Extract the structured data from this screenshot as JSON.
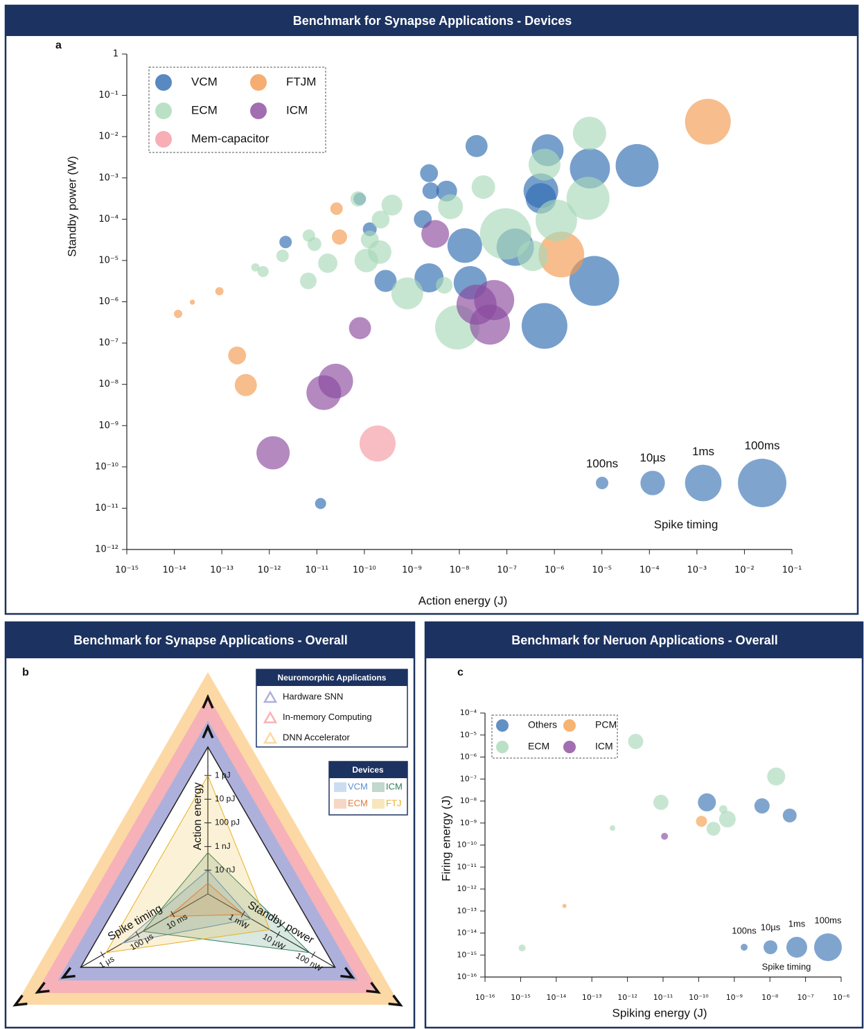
{
  "chart_data": [
    {
      "type": "bubble",
      "title": "Benchmark for Synapse Applications - Devices",
      "panel_label": "a",
      "x_label": "Action energy (J)",
      "y_label": "Standby power (W)",
      "log_x": true,
      "log_y": true,
      "xlim": [
        1e-15,
        0.1
      ],
      "ylim": [
        1e-12,
        1
      ],
      "xticks": [
        {
          "value": 1e-15,
          "label": "10⁻¹⁵"
        },
        {
          "value": 1e-14,
          "label": "10⁻¹⁴"
        },
        {
          "value": 1e-13,
          "label": "10⁻¹³"
        },
        {
          "value": 1e-12,
          "label": "10⁻¹²"
        },
        {
          "value": 1e-11,
          "label": "10⁻¹¹"
        },
        {
          "value": 1e-10,
          "label": "10⁻¹⁰"
        },
        {
          "value": 1e-09,
          "label": "10⁻⁹"
        },
        {
          "value": 1e-08,
          "label": "10⁻⁸"
        },
        {
          "value": 1e-07,
          "label": "10⁻⁷"
        },
        {
          "value": 1e-06,
          "label": "10⁻⁶"
        },
        {
          "value": 1e-05,
          "label": "10⁻⁵"
        },
        {
          "value": 0.0001,
          "label": "10⁻⁴"
        },
        {
          "value": 0.001,
          "label": "10⁻³"
        },
        {
          "value": 0.01,
          "label": "10⁻²"
        },
        {
          "value": 0.1,
          "label": "10⁻¹"
        }
      ],
      "yticks": [
        1,
        {
          "value": 0.1,
          "label": "10⁻¹"
        },
        {
          "value": 0.01,
          "label": "10⁻²"
        },
        {
          "value": 0.001,
          "label": "10⁻³"
        },
        {
          "value": 0.0001,
          "label": "10⁻⁴"
        },
        {
          "value": 1e-05,
          "label": "10⁻⁵"
        },
        {
          "value": 1e-06,
          "label": "10⁻⁶"
        },
        {
          "value": 1e-07,
          "label": "10⁻⁷"
        },
        {
          "value": 1e-08,
          "label": "10⁻⁸"
        },
        {
          "value": 1e-09,
          "label": "10⁻⁹"
        },
        {
          "value": 1e-10,
          "label": "10⁻¹⁰"
        },
        {
          "value": 1e-11,
          "label": "10⁻¹¹"
        },
        {
          "value": 1e-12,
          "label": "10⁻¹²"
        }
      ],
      "legend_position": "upper left",
      "series": [
        {
          "name": "VCM",
          "color": "#2e6bb0",
          "x": [
            2.3e-08,
            7.2e-07,
            5.6e-06,
            5.5e-05,
            2.3e-09,
            2.5e-09,
            5.4e-09,
            5.2e-07,
            5.2e-07,
            8e-11,
            1.7e-09,
            1.3e-10,
            2.2e-12,
            1.3e-08,
            1.5e-07,
            2.8e-10,
            2.3e-09,
            1.7e-08,
            6.9e-06,
            6.2e-07,
            1.2e-11
          ],
          "values": [
            0.0059,
            0.0047,
            0.0017,
            0.002,
            0.0013,
            0.00049,
            0.00048,
            0.00049,
            0.00032,
            0.00031,
            0.0001,
            5.7e-05,
            2.8e-05,
            2.3e-05,
            2.1e-05,
            3.2e-06,
            3.8e-06,
            2.9e-06,
            3.2e-06,
            2.6e-07,
            1.3e-11
          ],
          "sizes": [
            4e-06,
            0.00017,
            0.004,
            0.012,
            8e-07,
            5e-07,
            2.5e-06,
            0.0005,
            0.0001,
            1e-07,
            8e-07,
            1.7e-07,
            1e-07,
            0.0005,
            0.0014,
            4e-06,
            5.9e-05,
            0.00029,
            0.17,
            0.035,
            6e-08
          ]
        },
        {
          "name": "FTJM",
          "color": "#f39a4f",
          "x": [
            0.0017,
            2.6e-11,
            3e-11,
            1.4e-06,
            8.9e-14,
            2.4e-14,
            1.2e-14,
            2.1e-13,
            3.2e-13
          ],
          "values": [
            0.023,
            0.00018,
            3.7e-05,
            1.4e-05,
            1.8e-06,
            9.8e-07,
            5.1e-07,
            5e-08,
            9.6e-09
          ],
          "sizes": [
            0.035,
            1e-07,
            2.9e-07,
            0.035,
            2e-08,
            6e-09,
            2e-08,
            8e-07,
            4e-06
          ]
        },
        {
          "name": "ECM",
          "color": "#a9d9b8",
          "x": [
            5.5e-06,
            6.2e-07,
            3.2e-08,
            5.1e-06,
            3.8e-10,
            7.4e-11,
            6.5e-09,
            2.2e-10,
            1.1e-06,
            9.4e-08,
            6.8e-12,
            8.9e-12,
            1.3e-10,
            2.1e-10,
            1.1e-10,
            1.9e-12,
            1.7e-11,
            3.5e-07,
            5.1e-13,
            7.4e-13,
            6.6e-12,
            8e-10,
            4.8e-09,
            9e-09
          ],
          "values": [
            0.012,
            0.0021,
            0.0006,
            0.00032,
            0.00022,
            0.00031,
            0.0002,
            9.8e-05,
            9.4e-05,
            4.4e-05,
            4e-05,
            2.5e-05,
            3.2e-05,
            1.6e-05,
            1e-05,
            1.3e-05,
            8.6e-06,
            1.3e-05,
            6.8e-06,
            5.4e-06,
            3.2e-06,
            1.6e-06,
            2.5e-06,
            2.4e-07
          ],
          "sizes": [
            0.00029,
            0.00017,
            7e-06,
            0.012,
            2.5e-06,
            2.9e-07,
            1.2e-05,
            8e-07,
            0.007,
            0.3,
            1e-07,
            1.7e-07,
            8e-07,
            7e-06,
            7e-06,
            1e-07,
            1.4e-06,
            0.0001,
            2e-08,
            6e-08,
            5e-07,
            0.00017,
            5e-07,
            0.02
          ]
        },
        {
          "name": "ICM",
          "color": "#8b4a9e",
          "x": [
            3.1e-09,
            5.4e-08,
            2.3e-08,
            4.4e-08,
            8.1e-11,
            2.5e-11,
            1.4e-11,
            1.2e-12
          ],
          "values": [
            4.4e-05,
            1.1e-06,
            8.5e-07,
            2.8e-07,
            2.3e-07,
            1.2e-08,
            6.3e-09,
            2.2e-10
          ],
          "sizes": [
            3.5e-05,
            0.004,
            0.004,
            0.004,
            4e-06,
            0.0005,
            0.0005,
            0.00029
          ]
        },
        {
          "name": "Mem-capacitor",
          "color": "#f59aa2",
          "x": [
            1.9e-10
          ],
          "values": [
            3.7e-10
          ],
          "sizes": [
            0.00085
          ]
        }
      ],
      "size_legend": {
        "title": "Spike timing",
        "values": [
          1e-07,
          1e-05,
          0.001,
          0.1
        ],
        "labels": [
          "100ns",
          "10µs",
          "1ms",
          "100ms"
        ]
      }
    },
    {
      "type": "radar",
      "title": "Benchmark for Synapse Applications - Overall",
      "panel_label": "b",
      "axes": [
        {
          "name": "Action energy",
          "lim": [
            1e-07,
            1e-13
          ],
          "ticks": [
            {
              "value": 1e-12,
              "label": "1 pJ"
            },
            {
              "value": 1e-11,
              "label": "10 pJ"
            },
            {
              "value": 1e-10,
              "label": "100 pJ"
            },
            {
              "value": 1e-09,
              "label": "1 nJ"
            },
            {
              "value": 1e-08,
              "label": "10 nJ"
            }
          ]
        },
        {
          "name": "Standby power",
          "lim": [
            0.1,
            1e-08
          ],
          "ticks": [
            {
              "value": 0.001,
              "label": "1 mW"
            },
            {
              "value": 1e-05,
              "label": "10 µW"
            },
            {
              "value": 1e-07,
              "label": "100 nW"
            }
          ]
        },
        {
          "name": "Spike timing",
          "lim": [
            1,
            1e-07
          ],
          "ticks": [
            {
              "value": 0.01,
              "label": "10 ms"
            },
            {
              "value": 0.0001,
              "label": "100 µs"
            },
            {
              "value": 1e-06,
              "label": "1 µs"
            }
          ]
        }
      ],
      "legend_title": "Devices",
      "series": [
        {
          "name": "VCM",
          "color": "#5b8fd0",
          "values": [
            1e-08,
            0.00035,
            1.4e-05
          ]
        },
        {
          "name": "ICM",
          "color": "#2e7d5b",
          "values": [
            1.8e-09,
            1.6e-07,
            0.0002
          ]
        },
        {
          "name": "ECM",
          "color": "#e07a3a",
          "values": [
            3.5e-08,
            0.00093,
            0.006
          ]
        },
        {
          "name": "FTJ",
          "color": "#e8b020",
          "values": [
            1e-12,
            3e-05,
            1.6e-06
          ]
        }
      ],
      "applications": {
        "title": "Neuromorphic Applications",
        "items": [
          {
            "name": "Hardware SNN",
            "color": "#aeb0dc"
          },
          {
            "name": "In-memory Computing",
            "color": "#f6b2b8"
          },
          {
            "name": "DNN Accelerator",
            "color": "#fcd8a4"
          }
        ]
      }
    },
    {
      "type": "bubble",
      "title": "Benchmark for Neruon Applications - Overall",
      "panel_label": "c",
      "x_label": "Spiking energy (J)",
      "y_label": "Firing energy (J)",
      "log_x": true,
      "log_y": true,
      "xlim": [
        1e-16,
        1e-06
      ],
      "ylim": [
        1e-16,
        0.0001
      ],
      "xticks": [
        {
          "value": 1e-16,
          "label": "10⁻¹⁶"
        },
        {
          "value": 1e-15,
          "label": "10⁻¹⁵"
        },
        {
          "value": 1e-14,
          "label": "10⁻¹⁴"
        },
        {
          "value": 1e-13,
          "label": "10⁻¹³"
        },
        {
          "value": 1e-12,
          "label": "10⁻¹²"
        },
        {
          "value": 1e-11,
          "label": "10⁻¹¹"
        },
        {
          "value": 1e-10,
          "label": "10⁻¹⁰"
        },
        {
          "value": 1e-09,
          "label": "10⁻⁹"
        },
        {
          "value": 1e-08,
          "label": "10⁻⁸"
        },
        {
          "value": 1e-07,
          "label": "10⁻⁷"
        },
        {
          "value": 1e-06,
          "label": "10⁻⁶"
        }
      ],
      "yticks": [
        {
          "value": 0.0001,
          "label": "10⁻⁴"
        },
        {
          "value": 1e-05,
          "label": "10⁻⁵"
        },
        {
          "value": 1e-06,
          "label": "10⁻⁶"
        },
        {
          "value": 1e-07,
          "label": "10⁻⁷"
        },
        {
          "value": 1e-08,
          "label": "10⁻⁸"
        },
        {
          "value": 1e-09,
          "label": "10⁻⁹"
        },
        {
          "value": 1e-10,
          "label": "10⁻¹⁰"
        },
        {
          "value": 1e-11,
          "label": "10⁻¹¹"
        },
        {
          "value": 1e-12,
          "label": "10⁻¹²"
        },
        {
          "value": 1e-13,
          "label": "10⁻¹³"
        },
        {
          "value": 1e-14,
          "label": "10⁻¹⁴"
        },
        {
          "value": 1e-15,
          "label": "10⁻¹⁵"
        },
        {
          "value": 1e-16,
          "label": "10⁻¹⁶"
        }
      ],
      "legend_position": "upper left",
      "series": [
        {
          "name": "Others",
          "color": "#3a75b5",
          "x": [
            1.7e-10,
            6e-09,
            3.6e-08
          ],
          "values": [
            8.7e-09,
            6e-09,
            2.2e-09
          ],
          "sizes": [
            0.00016,
            2.5e-05,
            1e-05
          ]
        },
        {
          "name": "PCM",
          "color": "#f5a04f",
          "x": [
            1.2e-10,
            1.7e-14
          ],
          "values": [
            1.2e-09,
            1.7e-13
          ],
          "sizes": [
            1.6e-06,
            1.6e-08
          ]
        },
        {
          "name": "ECM",
          "color": "#a9d9b8",
          "x": [
            1.7e-12,
            1.5e-08,
            8.7e-12,
            4.9e-10,
            6.4e-10,
            2.6e-10,
            3.8e-13,
            1.1e-15
          ],
          "values": [
            5.1e-06,
            1.3e-07,
            8.7e-09,
            4.2e-09,
            1.5e-09,
            5.5e-10,
            5.9e-10,
            2.1e-15
          ],
          "sizes": [
            2.5e-05,
            0.00016,
            2.5e-05,
            2.5e-07,
            6.3e-05,
            1e-05,
            4e-08,
            1e-07
          ]
        },
        {
          "name": "ICM",
          "color": "#8b4a9e",
          "x": [
            1.1e-11
          ],
          "values": [
            2.5e-10
          ],
          "sizes": [
            1e-07
          ]
        }
      ],
      "size_legend": {
        "title": "Spike timing",
        "values": [
          1e-07,
          1e-05,
          0.001,
          0.1
        ],
        "labels": [
          "100ns",
          "10µs",
          "1ms",
          "100ms"
        ]
      }
    }
  ]
}
